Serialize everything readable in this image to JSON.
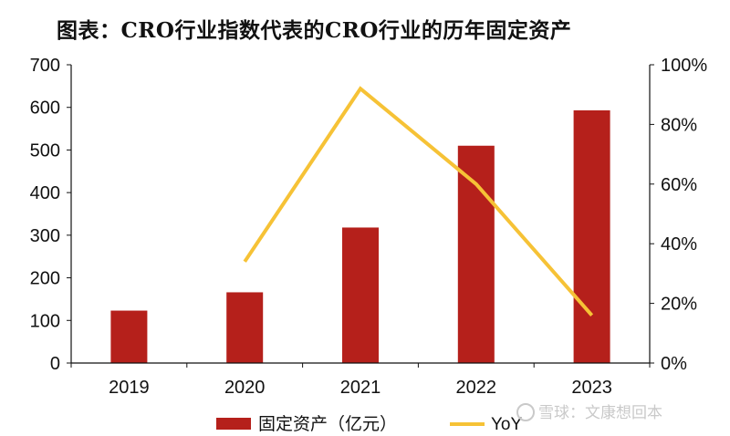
{
  "title": "图表：CRO行业指数代表的CRO行业的历年固定资产",
  "watermark": "雪球：文康想回本",
  "colors": {
    "bar": "#b5201b",
    "line": "#f6c236",
    "axis": "#111111",
    "watermark": "#c9c9c9"
  },
  "chart_data": {
    "type": "bar+line",
    "categories": [
      "2019",
      "2020",
      "2021",
      "2022",
      "2023"
    ],
    "series": [
      {
        "name": "固定资产（亿元）",
        "type": "bar",
        "axis": "left",
        "values": [
          123,
          166,
          318,
          510,
          593
        ]
      },
      {
        "name": "YoY",
        "type": "line",
        "axis": "right",
        "values": [
          null,
          34,
          92,
          60,
          16
        ]
      }
    ],
    "y_left": {
      "min": 0,
      "max": 700,
      "ticks": [
        "0",
        "100",
        "200",
        "300",
        "400",
        "500",
        "600",
        "700"
      ]
    },
    "y_right": {
      "min": 0,
      "max": 100,
      "unit": "%",
      "ticks": [
        "0%",
        "20%",
        "40%",
        "60%",
        "80%",
        "100%"
      ]
    },
    "grid": false,
    "legend_position": "bottom"
  }
}
